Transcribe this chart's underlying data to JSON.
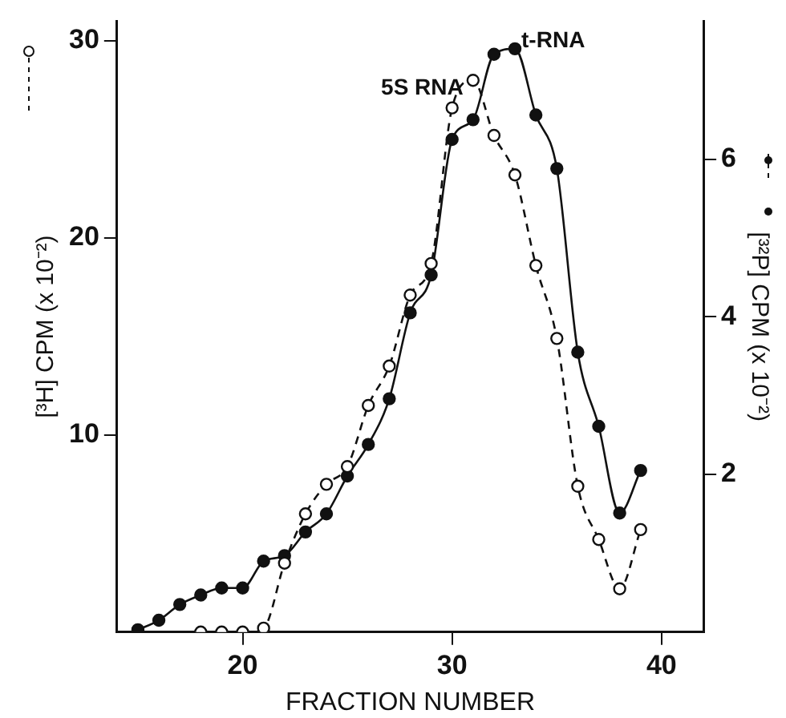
{
  "chart_data": {
    "type": "line",
    "xlabel": "FRACTION NUMBER",
    "ylabel": "[³H] CPM (x 10⁻²)",
    "y2label": "[³²P] CPM (x 10⁻²)",
    "xlim": [
      14,
      42
    ],
    "xticks": [
      20,
      30,
      40
    ],
    "ylim": [
      0,
      31
    ],
    "yticks": [
      10,
      20,
      30
    ],
    "y2lim": [
      0,
      7.75
    ],
    "y2ticks": [
      2,
      4,
      6
    ],
    "grid": false,
    "legend": false,
    "series": [
      {
        "type": "line",
        "axis": "y",
        "color": "#111111",
        "marker": "circle",
        "line_style": "dashed",
        "x": [
          18,
          19,
          20,
          21,
          22,
          23,
          24,
          25,
          26,
          27,
          28,
          29,
          30,
          31,
          32,
          33,
          34,
          35,
          36,
          37,
          38,
          39
        ],
        "values": [
          0,
          0,
          0,
          0.2,
          3.5,
          6.0,
          7.5,
          8.4,
          11.5,
          13.5,
          17.1,
          18.7,
          26.6,
          28.0,
          25.2,
          23.2,
          18.6,
          14.9,
          7.4,
          4.7,
          2.2,
          5.2
        ]
      },
      {
        "type": "line",
        "axis": "y2",
        "color": "#111111",
        "marker": "circle",
        "line_style": "solid",
        "x": [
          15,
          16,
          17,
          18,
          19,
          20,
          21,
          22,
          23,
          24,
          25,
          26,
          27,
          28,
          29,
          30,
          31,
          32,
          33,
          34,
          35,
          36,
          37,
          38,
          39
        ],
        "values": [
          0.03,
          0.15,
          0.35,
          0.47,
          0.56,
          0.56,
          0.9,
          0.97,
          1.27,
          1.5,
          1.98,
          2.38,
          2.96,
          4.05,
          4.53,
          6.25,
          6.5,
          7.33,
          7.4,
          6.56,
          5.88,
          3.55,
          2.61,
          1.51,
          2.05
        ]
      }
    ],
    "annotations": [
      {
        "text": "5S RNA",
        "x": 31,
        "y": 28
      },
      {
        "text": "t-RNA",
        "x": 33,
        "y": 29.6
      }
    ]
  }
}
